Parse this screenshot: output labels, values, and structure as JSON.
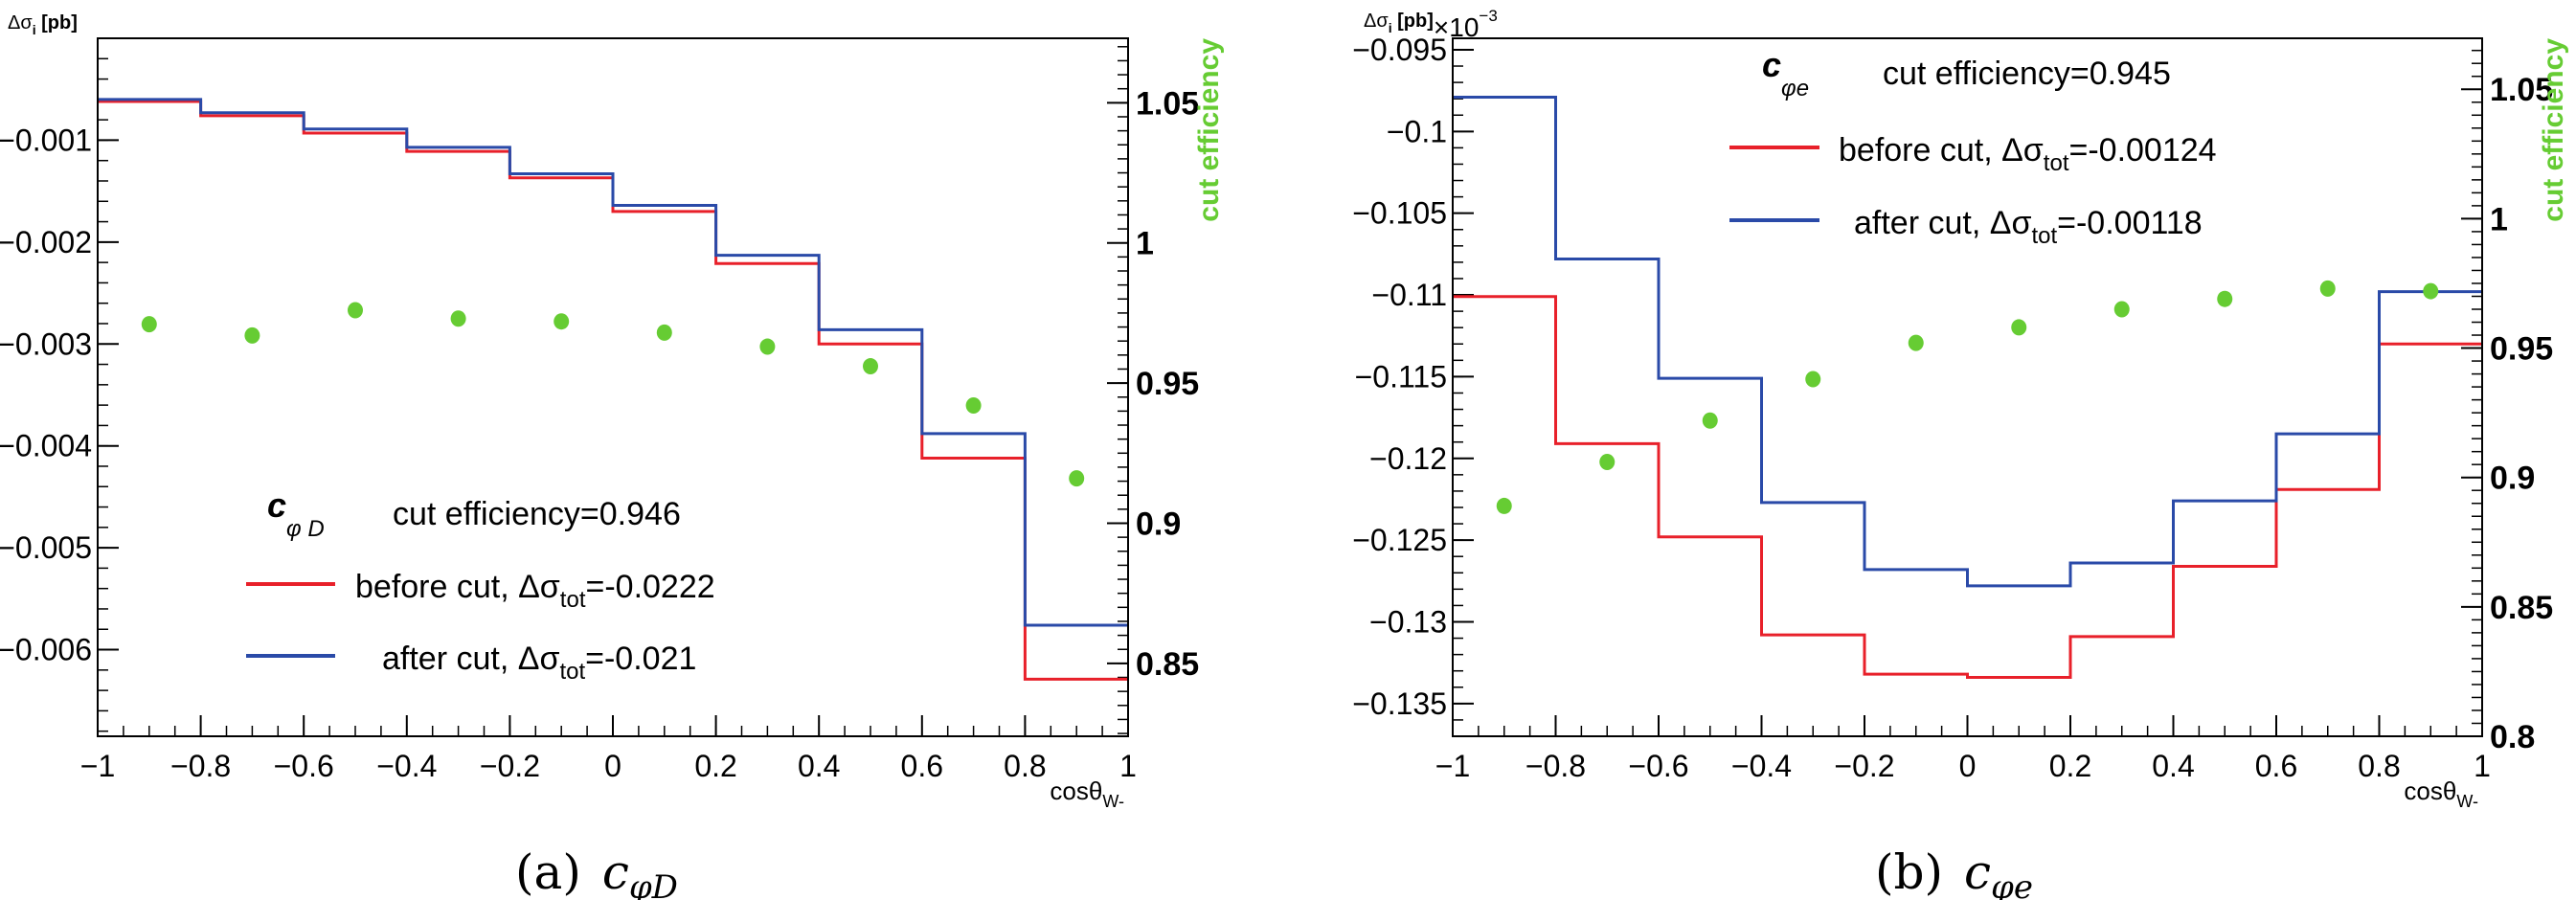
{
  "colors": {
    "before": "#e8202a",
    "after": "#2a4aa8",
    "efficiency": "#66cc33",
    "axis": "#000000"
  },
  "chart_data": [
    {
      "type": "histogram-step",
      "caption_tag": "(a)",
      "caption_var": "c",
      "caption_sub": "φD",
      "ylabel_main": "Δσ",
      "ylabel_sub": "i",
      "ylabel_unit": " [pb]",
      "ylabel_exp_base": "",
      "ylabel_exp": "",
      "xlabel_main": "cosθ",
      "xlabel_sub": "W-",
      "y2label": "cut efficiency",
      "xlim": [
        -1,
        1
      ],
      "ylim": [
        -0.00685,
        0
      ],
      "y2lim": [
        0.824,
        1.073
      ],
      "xticks": [
        -1,
        -0.8,
        -0.6,
        -0.4,
        -0.2,
        0,
        0.2,
        0.4,
        0.6,
        0.8,
        1
      ],
      "xtick_labels": [
        "−1",
        "−0.8",
        "−0.6",
        "−0.4",
        "−0.2",
        "0",
        "0.2",
        "0.4",
        "0.6",
        "0.8",
        "1"
      ],
      "yticks": [
        -0.001,
        -0.002,
        -0.003,
        -0.004,
        -0.005,
        -0.006
      ],
      "ytick_labels": [
        "−0.001",
        "−0.002",
        "−0.003",
        "−0.004",
        "−0.005",
        "−0.006"
      ],
      "yminor_step": 0.0002,
      "y2ticks": [
        1.05,
        1,
        0.95,
        0.9,
        0.85
      ],
      "y2tick_labels": [
        "1.05",
        "1",
        "0.95",
        "0.9",
        "0.85"
      ],
      "bin_edges": [
        -1,
        -0.8,
        -0.6,
        -0.4,
        -0.2,
        0,
        0.2,
        0.4,
        0.6,
        0.8,
        1
      ],
      "legend": {
        "var": "c",
        "var_sub": "φ D",
        "efficiency_text": "cut efficiency=0.946",
        "position": "bottom-center"
      },
      "series": [
        {
          "name": "before cut",
          "label_prefix": "before cut, Δσ",
          "label_sub": "tot",
          "label_suffix": "=-0.0222",
          "values": [
            -0.00062,
            -0.00076,
            -0.00093,
            -0.00111,
            -0.00137,
            -0.0017,
            -0.00221,
            -0.003,
            -0.00412,
            -0.00629
          ]
        },
        {
          "name": "after cut",
          "label_prefix": "after cut, Δσ",
          "label_sub": "tot",
          "label_suffix": "=-0.021",
          "values": [
            -0.0006,
            -0.00073,
            -0.00089,
            -0.00107,
            -0.00133,
            -0.00164,
            -0.00213,
            -0.00286,
            -0.00388,
            -0.00576
          ]
        }
      ],
      "efficiency": {
        "x": [
          -0.9,
          -0.7,
          -0.5,
          -0.3,
          -0.1,
          0.1,
          0.3,
          0.5,
          0.7,
          0.9
        ],
        "values": [
          0.971,
          0.967,
          0.976,
          0.973,
          0.972,
          0.968,
          0.963,
          0.956,
          0.942,
          0.916
        ]
      }
    },
    {
      "type": "histogram-step",
      "caption_tag": "(b)",
      "caption_var": "c",
      "caption_sub": "φe",
      "ylabel_main": "Δσ",
      "ylabel_sub": "i",
      "ylabel_unit": " [pb]",
      "ylabel_exp_base": "×10",
      "ylabel_exp": "−3",
      "xlabel_main": "cosθ",
      "xlabel_sub": "W-",
      "y2label": "cut efficiency",
      "xlim": [
        -1,
        1
      ],
      "ylim": [
        -0.137,
        -0.0943
      ],
      "y2lim": [
        0.8,
        1.0697
      ],
      "xticks": [
        -1,
        -0.8,
        -0.6,
        -0.4,
        -0.2,
        0,
        0.2,
        0.4,
        0.6,
        0.8,
        1
      ],
      "xtick_labels": [
        "−1",
        "−0.8",
        "−0.6",
        "−0.4",
        "−0.2",
        "0",
        "0.2",
        "0.4",
        "0.6",
        "0.8",
        "1"
      ],
      "yticks": [
        -0.095,
        -0.1,
        -0.105,
        -0.11,
        -0.115,
        -0.12,
        -0.125,
        -0.13,
        -0.135
      ],
      "ytick_labels": [
        "−0.095",
        "−0.1",
        "−0.105",
        "−0.11",
        "−0.115",
        "−0.12",
        "−0.125",
        "−0.13",
        "−0.135"
      ],
      "yminor_step": 0.001,
      "y2ticks": [
        1.05,
        1,
        0.95,
        0.9,
        0.85,
        0.8
      ],
      "y2tick_labels": [
        "1.05",
        "1",
        "0.95",
        "0.9",
        "0.85",
        "0.8"
      ],
      "bin_edges": [
        -1,
        -0.8,
        -0.6,
        -0.4,
        -0.2,
        0,
        0.2,
        0.4,
        0.6,
        0.8,
        1
      ],
      "legend": {
        "var": "c",
        "var_sub": "φe",
        "efficiency_text": "cut efficiency=0.945",
        "position": "top-center"
      },
      "series": [
        {
          "name": "before cut",
          "label_prefix": "before cut, Δσ",
          "label_sub": "tot",
          "label_suffix": "=-0.00124",
          "values": [
            -0.1101,
            -0.1191,
            -0.1248,
            -0.1308,
            -0.1332,
            -0.1334,
            -0.1309,
            -0.1266,
            -0.1219,
            -0.113
          ]
        },
        {
          "name": "after cut",
          "label_prefix": "after cut, Δσ",
          "label_sub": "tot",
          "label_suffix": "=-0.00118",
          "values": [
            -0.0979,
            -0.1078,
            -0.1151,
            -0.1227,
            -0.1268,
            -0.1278,
            -0.1264,
            -0.1226,
            -0.1185,
            -0.1098
          ]
        }
      ],
      "efficiency": {
        "x": [
          -0.9,
          -0.7,
          -0.5,
          -0.3,
          -0.1,
          0.1,
          0.3,
          0.5,
          0.7,
          0.9
        ],
        "values": [
          0.889,
          0.906,
          0.922,
          0.938,
          0.952,
          0.958,
          0.965,
          0.969,
          0.973,
          0.972
        ]
      }
    }
  ]
}
